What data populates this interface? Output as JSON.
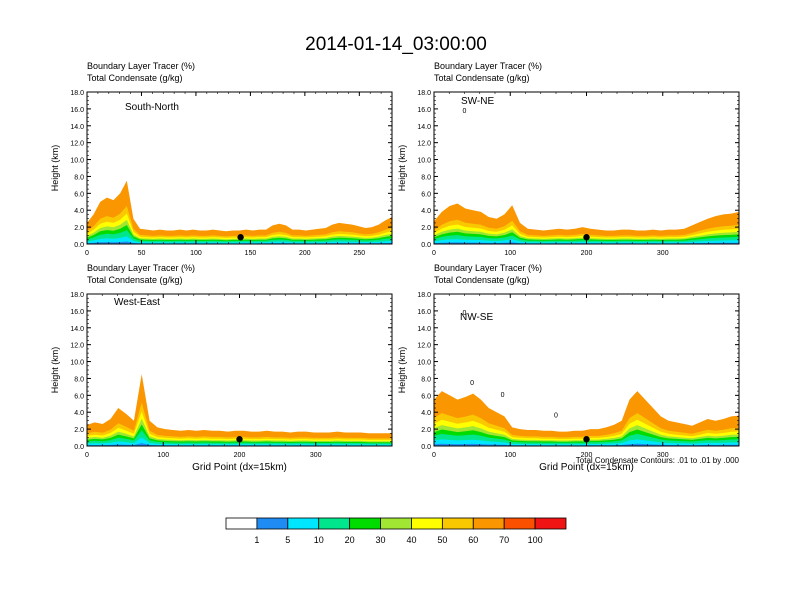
{
  "title": "2014-01-14_03:00:00",
  "panel_header": {
    "line1": "Boundary Layer Tracer   (%)",
    "line2": "Total Condensate   (g/kg)"
  },
  "ylabel": "Height (km)",
  "xlabel": "Grid Point (dx=15km)",
  "contour_note": "Total Condensate Contours: .01 to .01 by .000",
  "colors": {
    "levels": [
      "#ffffff",
      "#1e8cf2",
      "#00e6ff",
      "#00e68c",
      "#00dc00",
      "#a0e632",
      "#ffff00",
      "#fac800",
      "#fa9600",
      "#fa5000",
      "#f01414"
    ]
  },
  "chart_data": [
    {
      "type": "heatmap",
      "name": "South-North",
      "label": "South-North",
      "xlim": [
        0,
        280
      ],
      "xticks": [
        0,
        50,
        100,
        150,
        200,
        250
      ],
      "ylim": [
        0,
        18
      ],
      "yticks": [
        0.0,
        2.0,
        4.0,
        6.0,
        8.0,
        10.0,
        12.0,
        14.0,
        16.0,
        18.0
      ],
      "ytick_labels": [
        "0.0",
        "2.0",
        "4.0",
        "6.0",
        "8.0",
        "10.0",
        "12.0",
        "14.0",
        "16.0",
        "18.0"
      ],
      "marker_x": 141,
      "tracer_top_km": [
        2.5,
        3.5,
        5.0,
        5.5,
        5.2,
        6.0,
        7.5,
        3.0,
        1.8,
        1.7,
        1.6,
        1.7,
        1.6,
        1.6,
        1.7,
        1.6,
        1.7,
        1.6,
        1.6,
        1.7,
        1.6,
        1.5,
        1.6,
        1.6,
        1.7,
        1.6,
        1.7,
        1.7,
        2.2,
        2.4,
        2.2,
        1.7,
        1.7,
        1.6,
        1.7,
        1.8,
        1.9,
        2.3,
        2.5,
        2.4,
        2.3,
        2.1,
        1.9,
        2.0,
        2.3,
        2.8,
        3.2
      ],
      "contour_labels": []
    },
    {
      "type": "heatmap",
      "name": "SW-NE",
      "label": "SW-NE",
      "xlim": [
        0,
        400
      ],
      "xticks": [
        0,
        100,
        200,
        300
      ],
      "ylim": [
        0,
        18
      ],
      "yticks": [
        0.0,
        2.0,
        4.0,
        6.0,
        8.0,
        10.0,
        12.0,
        14.0,
        16.0,
        18.0
      ],
      "ytick_labels": [
        "0.0",
        "2.0",
        "4.0",
        "6.0",
        "8.0",
        "10.0",
        "12.0",
        "14.0",
        "16.0",
        "18.0"
      ],
      "marker_x": 200,
      "tracer_top_km": [
        2.7,
        3.8,
        4.5,
        4.8,
        4.2,
        4.0,
        3.8,
        3.2,
        3.0,
        3.5,
        4.6,
        2.5,
        1.8,
        1.7,
        1.6,
        1.7,
        1.8,
        1.7,
        1.8,
        2.0,
        1.8,
        1.7,
        1.6,
        1.6,
        1.7,
        1.7,
        1.6,
        1.6,
        1.7,
        1.6,
        1.7,
        1.7,
        1.8,
        2.2,
        2.6,
        3.0,
        3.3,
        3.5,
        3.6,
        3.8
      ],
      "contour_labels": [
        "0"
      ]
    },
    {
      "type": "heatmap",
      "name": "West-East",
      "label": "West-East",
      "xlim": [
        0,
        400
      ],
      "xticks": [
        0,
        100,
        200,
        300
      ],
      "ylim": [
        0,
        18
      ],
      "yticks": [
        0.0,
        2.0,
        4.0,
        6.0,
        8.0,
        10.0,
        12.0,
        14.0,
        16.0,
        18.0
      ],
      "ytick_labels": [
        "0.0",
        "2.0",
        "4.0",
        "6.0",
        "8.0",
        "10.0",
        "12.0",
        "14.0",
        "16.0",
        "18.0"
      ],
      "marker_x": 200,
      "tracer_top_km": [
        2.5,
        2.8,
        2.6,
        3.2,
        4.5,
        3.8,
        3.0,
        8.5,
        3.0,
        2.2,
        2.0,
        1.9,
        1.8,
        1.9,
        1.8,
        1.9,
        1.8,
        1.8,
        1.7,
        1.8,
        1.8,
        1.7,
        1.7,
        1.8,
        1.7,
        1.7,
        1.6,
        1.7,
        1.7,
        1.6,
        1.6,
        1.6,
        1.7,
        1.6,
        1.6,
        1.6,
        1.5,
        1.5,
        1.5,
        1.5
      ],
      "contour_labels": []
    },
    {
      "type": "heatmap",
      "name": "NW-SE",
      "label": "NW-SE",
      "xlim": [
        0,
        400
      ],
      "xticks": [
        0,
        100,
        200,
        300
      ],
      "ylim": [
        0,
        18
      ],
      "yticks": [
        0.0,
        2.0,
        4.0,
        6.0,
        8.0,
        10.0,
        12.0,
        14.0,
        16.0,
        18.0
      ],
      "ytick_labels": [
        "0.0",
        "2.0",
        "4.0",
        "6.0",
        "8.0",
        "10.0",
        "12.0",
        "14.0",
        "16.0",
        "18.0"
      ],
      "marker_x": 200,
      "tracer_top_km": [
        5.5,
        6.5,
        6.0,
        5.5,
        5.8,
        6.2,
        5.5,
        4.5,
        4.0,
        3.5,
        2.2,
        2.0,
        1.9,
        1.9,
        1.8,
        1.8,
        1.7,
        1.7,
        1.8,
        1.8,
        2.0,
        2.0,
        2.2,
        2.5,
        3.0,
        5.5,
        6.5,
        5.5,
        4.5,
        3.5,
        3.0,
        2.8,
        2.6,
        2.4,
        2.8,
        3.2,
        3.0,
        3.2,
        3.5,
        3.6
      ],
      "contour_labels": [
        "0",
        "0",
        "0",
        "0"
      ]
    }
  ],
  "colorbar": {
    "labels": [
      "1",
      "5",
      "10",
      "20",
      "30",
      "40",
      "50",
      "60",
      "70",
      "100"
    ]
  }
}
